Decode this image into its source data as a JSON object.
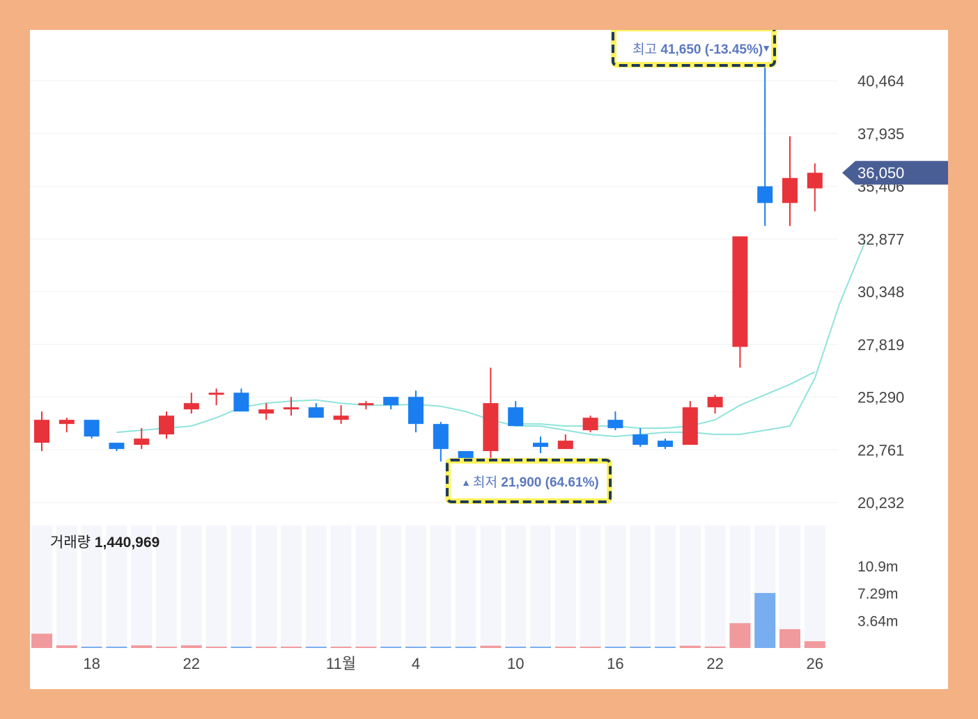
{
  "chart_data": {
    "type": "candlestick",
    "price_axis": {
      "ticks": [
        "40,464",
        "37,935",
        "35,406",
        "32,877",
        "30,348",
        "27,819",
        "25,290",
        "22,761",
        "20,232"
      ],
      "tick_values": [
        40464,
        37935,
        35406,
        32877,
        30348,
        27819,
        25290,
        22761,
        20232
      ],
      "current_price_label": "36,050",
      "current_price": 36050
    },
    "x_axis_labels": [
      {
        "index": 2,
        "label": "18"
      },
      {
        "index": 6,
        "label": "22"
      },
      {
        "index": 12,
        "label": "11월"
      },
      {
        "index": 15,
        "label": "4"
      },
      {
        "index": 19,
        "label": "10"
      },
      {
        "index": 23,
        "label": "16"
      },
      {
        "index": 27,
        "label": "22"
      },
      {
        "index": 31,
        "label": "26"
      }
    ],
    "candles": [
      {
        "open": 23100,
        "close": 24200,
        "high": 24600,
        "low": 22700,
        "dir": "up"
      },
      {
        "open": 24000,
        "close": 24200,
        "high": 24300,
        "low": 23600,
        "dir": "up"
      },
      {
        "open": 24200,
        "close": 23400,
        "high": 24200,
        "low": 23300,
        "dir": "down"
      },
      {
        "open": 23100,
        "close": 22800,
        "high": 23100,
        "low": 22700,
        "dir": "down"
      },
      {
        "open": 23000,
        "close": 23300,
        "high": 23800,
        "low": 22800,
        "dir": "up"
      },
      {
        "open": 23500,
        "close": 24400,
        "high": 24600,
        "low": 23300,
        "dir": "up"
      },
      {
        "open": 24700,
        "close": 25000,
        "high": 25500,
        "low": 24500,
        "dir": "up"
      },
      {
        "open": 25400,
        "close": 25500,
        "high": 25700,
        "low": 24900,
        "dir": "up"
      },
      {
        "open": 25500,
        "close": 24600,
        "high": 25700,
        "low": 24600,
        "dir": "down"
      },
      {
        "open": 24500,
        "close": 24700,
        "high": 25000,
        "low": 24200,
        "dir": "up"
      },
      {
        "open": 24700,
        "close": 24800,
        "high": 25300,
        "low": 24400,
        "dir": "up"
      },
      {
        "open": 24800,
        "close": 24300,
        "high": 25000,
        "low": 24300,
        "dir": "down"
      },
      {
        "open": 24200,
        "close": 24400,
        "high": 24900,
        "low": 24000,
        "dir": "up"
      },
      {
        "open": 24900,
        "close": 25000,
        "high": 25100,
        "low": 24700,
        "dir": "up"
      },
      {
        "open": 25300,
        "close": 24900,
        "high": 25300,
        "low": 24700,
        "dir": "down"
      },
      {
        "open": 25300,
        "close": 24000,
        "high": 25600,
        "low": 23600,
        "dir": "down"
      },
      {
        "open": 24000,
        "close": 22800,
        "high": 24100,
        "low": 22200,
        "dir": "down"
      },
      {
        "open": 22700,
        "close": 21900,
        "high": 22700,
        "low": 21900,
        "dir": "down"
      },
      {
        "open": 22700,
        "close": 25000,
        "high": 26700,
        "low": 22200,
        "dir": "up"
      },
      {
        "open": 24800,
        "close": 23900,
        "high": 25100,
        "low": 23900,
        "dir": "down"
      },
      {
        "open": 23100,
        "close": 22900,
        "high": 23400,
        "low": 22600,
        "dir": "down"
      },
      {
        "open": 22800,
        "close": 23200,
        "high": 23500,
        "low": 22800,
        "dir": "up"
      },
      {
        "open": 23700,
        "close": 24300,
        "high": 24400,
        "low": 23600,
        "dir": "up"
      },
      {
        "open": 24200,
        "close": 23800,
        "high": 24600,
        "low": 23700,
        "dir": "down"
      },
      {
        "open": 23500,
        "close": 23000,
        "high": 23800,
        "low": 22900,
        "dir": "down"
      },
      {
        "open": 23200,
        "close": 22900,
        "high": 23300,
        "low": 22800,
        "dir": "down"
      },
      {
        "open": 23000,
        "close": 24800,
        "high": 25100,
        "low": 23000,
        "dir": "up"
      },
      {
        "open": 24800,
        "close": 25300,
        "high": 25400,
        "low": 24500,
        "dir": "up"
      },
      {
        "open": 27700,
        "close": 33000,
        "high": 33000,
        "low": 26700,
        "dir": "up"
      },
      {
        "open": 35400,
        "close": 34600,
        "high": 41650,
        "low": 33500,
        "dir": "down"
      },
      {
        "open": 34600,
        "close": 35800,
        "high": 37800,
        "low": 33500,
        "dir": "up"
      },
      {
        "open": 35300,
        "close": 36050,
        "high": 36500,
        "low": 34200,
        "dir": "up"
      }
    ],
    "moving_averages": [
      {
        "name": "",
        "start_index": 3,
        "values": [
          23600,
          23700,
          23800,
          23900,
          24300,
          24800,
          25000,
          25100,
          25150,
          25000,
          24900,
          24900,
          24950,
          24850,
          24600,
          24200,
          23900,
          23900,
          23700,
          23500,
          23400,
          23500,
          23600,
          23600,
          23500,
          23500,
          23700,
          23900,
          26200,
          29800,
          32700
        ]
      },
      {
        "name": "",
        "start_index": 19,
        "values": [
          24000,
          24000,
          23900,
          23900,
          23900,
          23800,
          23800,
          23900,
          24200,
          24900,
          25400,
          25900,
          26500
        ]
      }
    ],
    "annotations": {
      "high": {
        "prefix": "최고",
        "value": "41,650 (-13.45%)",
        "marker": "▼",
        "index": 29
      },
      "low": {
        "prefix": "최저",
        "value": "21,900 (64.61%)",
        "marker": "▲",
        "index": 17
      }
    },
    "volume": {
      "label": "거래량",
      "value": "1,440,969",
      "ticks": [
        "10.9m",
        "7.29m",
        "3.64m"
      ],
      "tick_values": [
        10900000,
        7290000,
        3640000
      ],
      "bars": [
        1900000,
        350000,
        80000,
        80000,
        350000,
        180000,
        350000,
        180000,
        150000,
        60000,
        60000,
        60000,
        60000,
        60000,
        60000,
        120000,
        120000,
        120000,
        300000,
        120000,
        60000,
        40000,
        60000,
        40000,
        40000,
        40000,
        300000,
        200000,
        3300000,
        7300000,
        2500000,
        900000
      ],
      "bar_dirs": [
        "up",
        "up",
        "down",
        "down",
        "up",
        "up",
        "up",
        "up",
        "down",
        "up",
        "up",
        "down",
        "up",
        "up",
        "down",
        "down",
        "down",
        "down",
        "up",
        "down",
        "down",
        "up",
        "up",
        "down",
        "down",
        "down",
        "up",
        "up",
        "up",
        "down",
        "up",
        "up"
      ]
    },
    "colors": {
      "up": "#e8333a",
      "down": "#1a7ef0",
      "ma": "#8fe3dc",
      "volume_up": "#f19a9d",
      "volume_down": "#78aef0",
      "price_tag": "#4a5e96",
      "annotation_text": "#5a78c0",
      "highlight_border": "#1e3a5c",
      "highlight_bg": "#fff35a"
    }
  }
}
